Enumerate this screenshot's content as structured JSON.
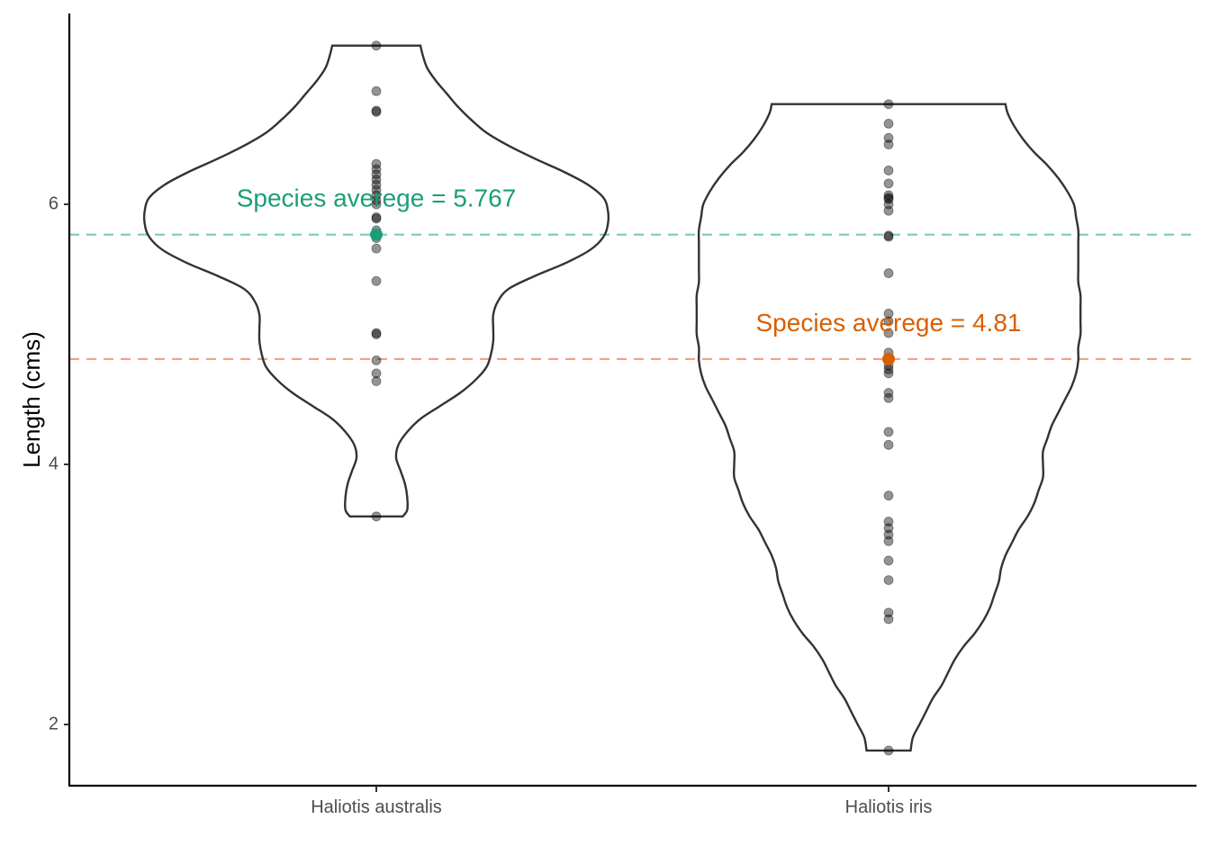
{
  "chart_data": {
    "type": "violin",
    "ylabel": "Length (cms)",
    "xlabel": "",
    "ylim": [
      1.5,
      7.4
    ],
    "yticks": [
      2,
      4,
      6
    ],
    "grid": false,
    "legend": "none",
    "categories": [
      "Haliotis australis",
      "Haliotis iris"
    ],
    "series": [
      {
        "category": "Haliotis australis",
        "color": "#1b9e77",
        "dashed_line_color": "#66c2a5",
        "mean": 5.767,
        "mean_label": "Species averege = 5.767",
        "min": 3.6,
        "max": 7.22,
        "points": [
          7.22,
          6.87,
          6.72,
          6.71,
          6.31,
          6.27,
          6.23,
          6.19,
          6.15,
          6.11,
          6.07,
          6.03,
          6.0,
          5.9,
          5.89,
          5.8,
          5.76,
          5.74,
          5.66,
          5.41,
          5.01,
          5.0,
          4.8,
          4.7,
          4.64,
          3.6
        ],
        "density": [
          [
            3.6,
            0.12
          ],
          [
            3.65,
            0.14
          ],
          [
            3.75,
            0.14
          ],
          [
            3.85,
            0.13
          ],
          [
            3.95,
            0.11
          ],
          [
            4.05,
            0.09
          ],
          [
            4.15,
            0.1
          ],
          [
            4.25,
            0.14
          ],
          [
            4.35,
            0.2
          ],
          [
            4.45,
            0.29
          ],
          [
            4.55,
            0.38
          ],
          [
            4.65,
            0.45
          ],
          [
            4.75,
            0.5
          ],
          [
            4.85,
            0.52
          ],
          [
            4.95,
            0.53
          ],
          [
            5.05,
            0.53
          ],
          [
            5.15,
            0.53
          ],
          [
            5.25,
            0.55
          ],
          [
            5.35,
            0.6
          ],
          [
            5.45,
            0.72
          ],
          [
            5.55,
            0.86
          ],
          [
            5.65,
            0.97
          ],
          [
            5.75,
            1.03
          ],
          [
            5.85,
            1.05
          ],
          [
            5.95,
            1.05
          ],
          [
            6.05,
            1.03
          ],
          [
            6.15,
            0.96
          ],
          [
            6.25,
            0.85
          ],
          [
            6.35,
            0.72
          ],
          [
            6.45,
            0.6
          ],
          [
            6.55,
            0.5
          ],
          [
            6.65,
            0.43
          ],
          [
            6.75,
            0.37
          ],
          [
            6.85,
            0.32
          ],
          [
            6.95,
            0.27
          ],
          [
            7.05,
            0.23
          ],
          [
            7.15,
            0.21
          ],
          [
            7.22,
            0.2
          ]
        ]
      },
      {
        "category": "Haliotis iris",
        "color": "#d95f02",
        "dashed_line_color": "#fc8d62",
        "mean": 4.81,
        "mean_label": "Species averege = 4.81",
        "min": 1.8,
        "max": 6.77,
        "points": [
          6.77,
          6.62,
          6.51,
          6.46,
          6.26,
          6.16,
          6.07,
          6.05,
          6.04,
          6.0,
          5.95,
          5.76,
          5.75,
          5.47,
          5.16,
          5.1,
          5.01,
          4.86,
          4.76,
          4.73,
          4.7,
          4.55,
          4.51,
          4.25,
          4.15,
          3.76,
          3.56,
          3.51,
          3.46,
          3.41,
          3.26,
          3.11,
          2.86,
          2.81,
          1.8
        ],
        "density": [
          [
            1.8,
            0.1
          ],
          [
            1.9,
            0.11
          ],
          [
            2.0,
            0.14
          ],
          [
            2.1,
            0.17
          ],
          [
            2.2,
            0.2
          ],
          [
            2.3,
            0.24
          ],
          [
            2.4,
            0.27
          ],
          [
            2.5,
            0.3
          ],
          [
            2.6,
            0.34
          ],
          [
            2.7,
            0.39
          ],
          [
            2.8,
            0.43
          ],
          [
            2.9,
            0.46
          ],
          [
            3.0,
            0.48
          ],
          [
            3.1,
            0.5
          ],
          [
            3.2,
            0.51
          ],
          [
            3.3,
            0.53
          ],
          [
            3.4,
            0.56
          ],
          [
            3.5,
            0.59
          ],
          [
            3.6,
            0.63
          ],
          [
            3.7,
            0.66
          ],
          [
            3.8,
            0.68
          ],
          [
            3.9,
            0.7
          ],
          [
            4.0,
            0.7
          ],
          [
            4.1,
            0.7
          ],
          [
            4.2,
            0.72
          ],
          [
            4.3,
            0.74
          ],
          [
            4.4,
            0.77
          ],
          [
            4.5,
            0.8
          ],
          [
            4.6,
            0.83
          ],
          [
            4.7,
            0.85
          ],
          [
            4.8,
            0.86
          ],
          [
            4.9,
            0.86
          ],
          [
            5.0,
            0.87
          ],
          [
            5.1,
            0.87
          ],
          [
            5.2,
            0.87
          ],
          [
            5.3,
            0.87
          ],
          [
            5.4,
            0.86
          ],
          [
            5.5,
            0.86
          ],
          [
            5.6,
            0.86
          ],
          [
            5.7,
            0.86
          ],
          [
            5.8,
            0.86
          ],
          [
            5.9,
            0.85
          ],
          [
            6.0,
            0.84
          ],
          [
            6.1,
            0.81
          ],
          [
            6.2,
            0.77
          ],
          [
            6.3,
            0.72
          ],
          [
            6.4,
            0.66
          ],
          [
            6.5,
            0.61
          ],
          [
            6.6,
            0.57
          ],
          [
            6.7,
            0.54
          ],
          [
            6.77,
            0.53
          ]
        ]
      }
    ]
  }
}
